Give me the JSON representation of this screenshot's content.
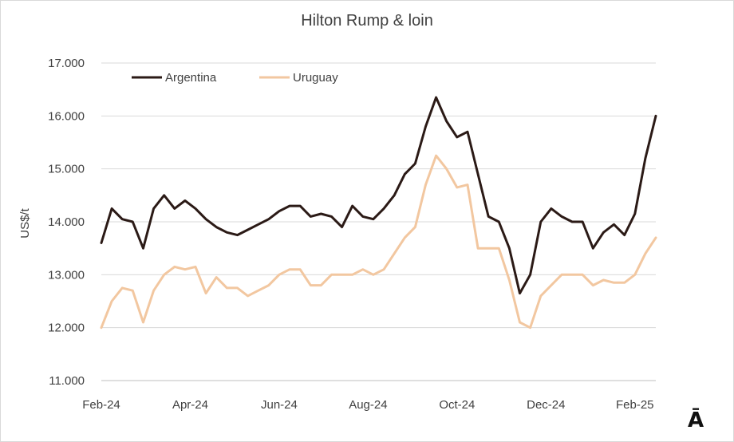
{
  "chart_data": {
    "type": "line",
    "title": "Hilton Rump & loin",
    "ylabel": "US$/t",
    "xlabel": "",
    "ylim": [
      11000,
      17000
    ],
    "y_ticks": [
      "11.000",
      "12.000",
      "13.000",
      "14.000",
      "15.000",
      "16.000",
      "17.000"
    ],
    "y_tick_values": [
      11000,
      12000,
      13000,
      14000,
      15000,
      16000,
      17000
    ],
    "x_ticks": [
      "Feb-24",
      "Apr-24",
      "Jun-24",
      "Aug-24",
      "Oct-24",
      "Dec-24",
      "Feb-25"
    ],
    "x_tick_index": [
      0,
      8.5,
      17,
      25.5,
      34,
      42.5,
      51
    ],
    "grid": "horizontal",
    "legend_position": "top-left",
    "series": [
      {
        "name": "Argentina",
        "color": "#2b1a16",
        "values": [
          13600,
          14250,
          14050,
          14000,
          13500,
          14250,
          14500,
          14250,
          14400,
          14250,
          14050,
          13900,
          13800,
          13750,
          13850,
          13950,
          14050,
          14200,
          14300,
          14300,
          14100,
          14150,
          14100,
          13900,
          14300,
          14100,
          14050,
          14250,
          14500,
          14900,
          15100,
          15800,
          16350,
          15900,
          15600,
          15700,
          14900,
          14100,
          14000,
          13500,
          12650,
          13000,
          14000,
          14250,
          14100,
          14000,
          14000,
          13500,
          13800,
          13950,
          13750,
          14150,
          15200,
          16000
        ]
      },
      {
        "name": "Uruguay",
        "color": "#f2c7a0",
        "values": [
          12000,
          12500,
          12750,
          12700,
          12100,
          12700,
          13000,
          13150,
          13100,
          13150,
          12650,
          12950,
          12750,
          12750,
          12600,
          12700,
          12800,
          13000,
          13100,
          13100,
          12800,
          12800,
          13000,
          13000,
          13000,
          13100,
          13000,
          13100,
          13400,
          13700,
          13900,
          14700,
          15250,
          15000,
          14650,
          14700,
          13500,
          13500,
          13500,
          12900,
          12100,
          12000,
          12600,
          12800,
          13000,
          13000,
          13000,
          12800,
          12900,
          12850,
          12850,
          13000,
          13400,
          13700
        ]
      }
    ]
  },
  "corner_glyph": "Ā"
}
